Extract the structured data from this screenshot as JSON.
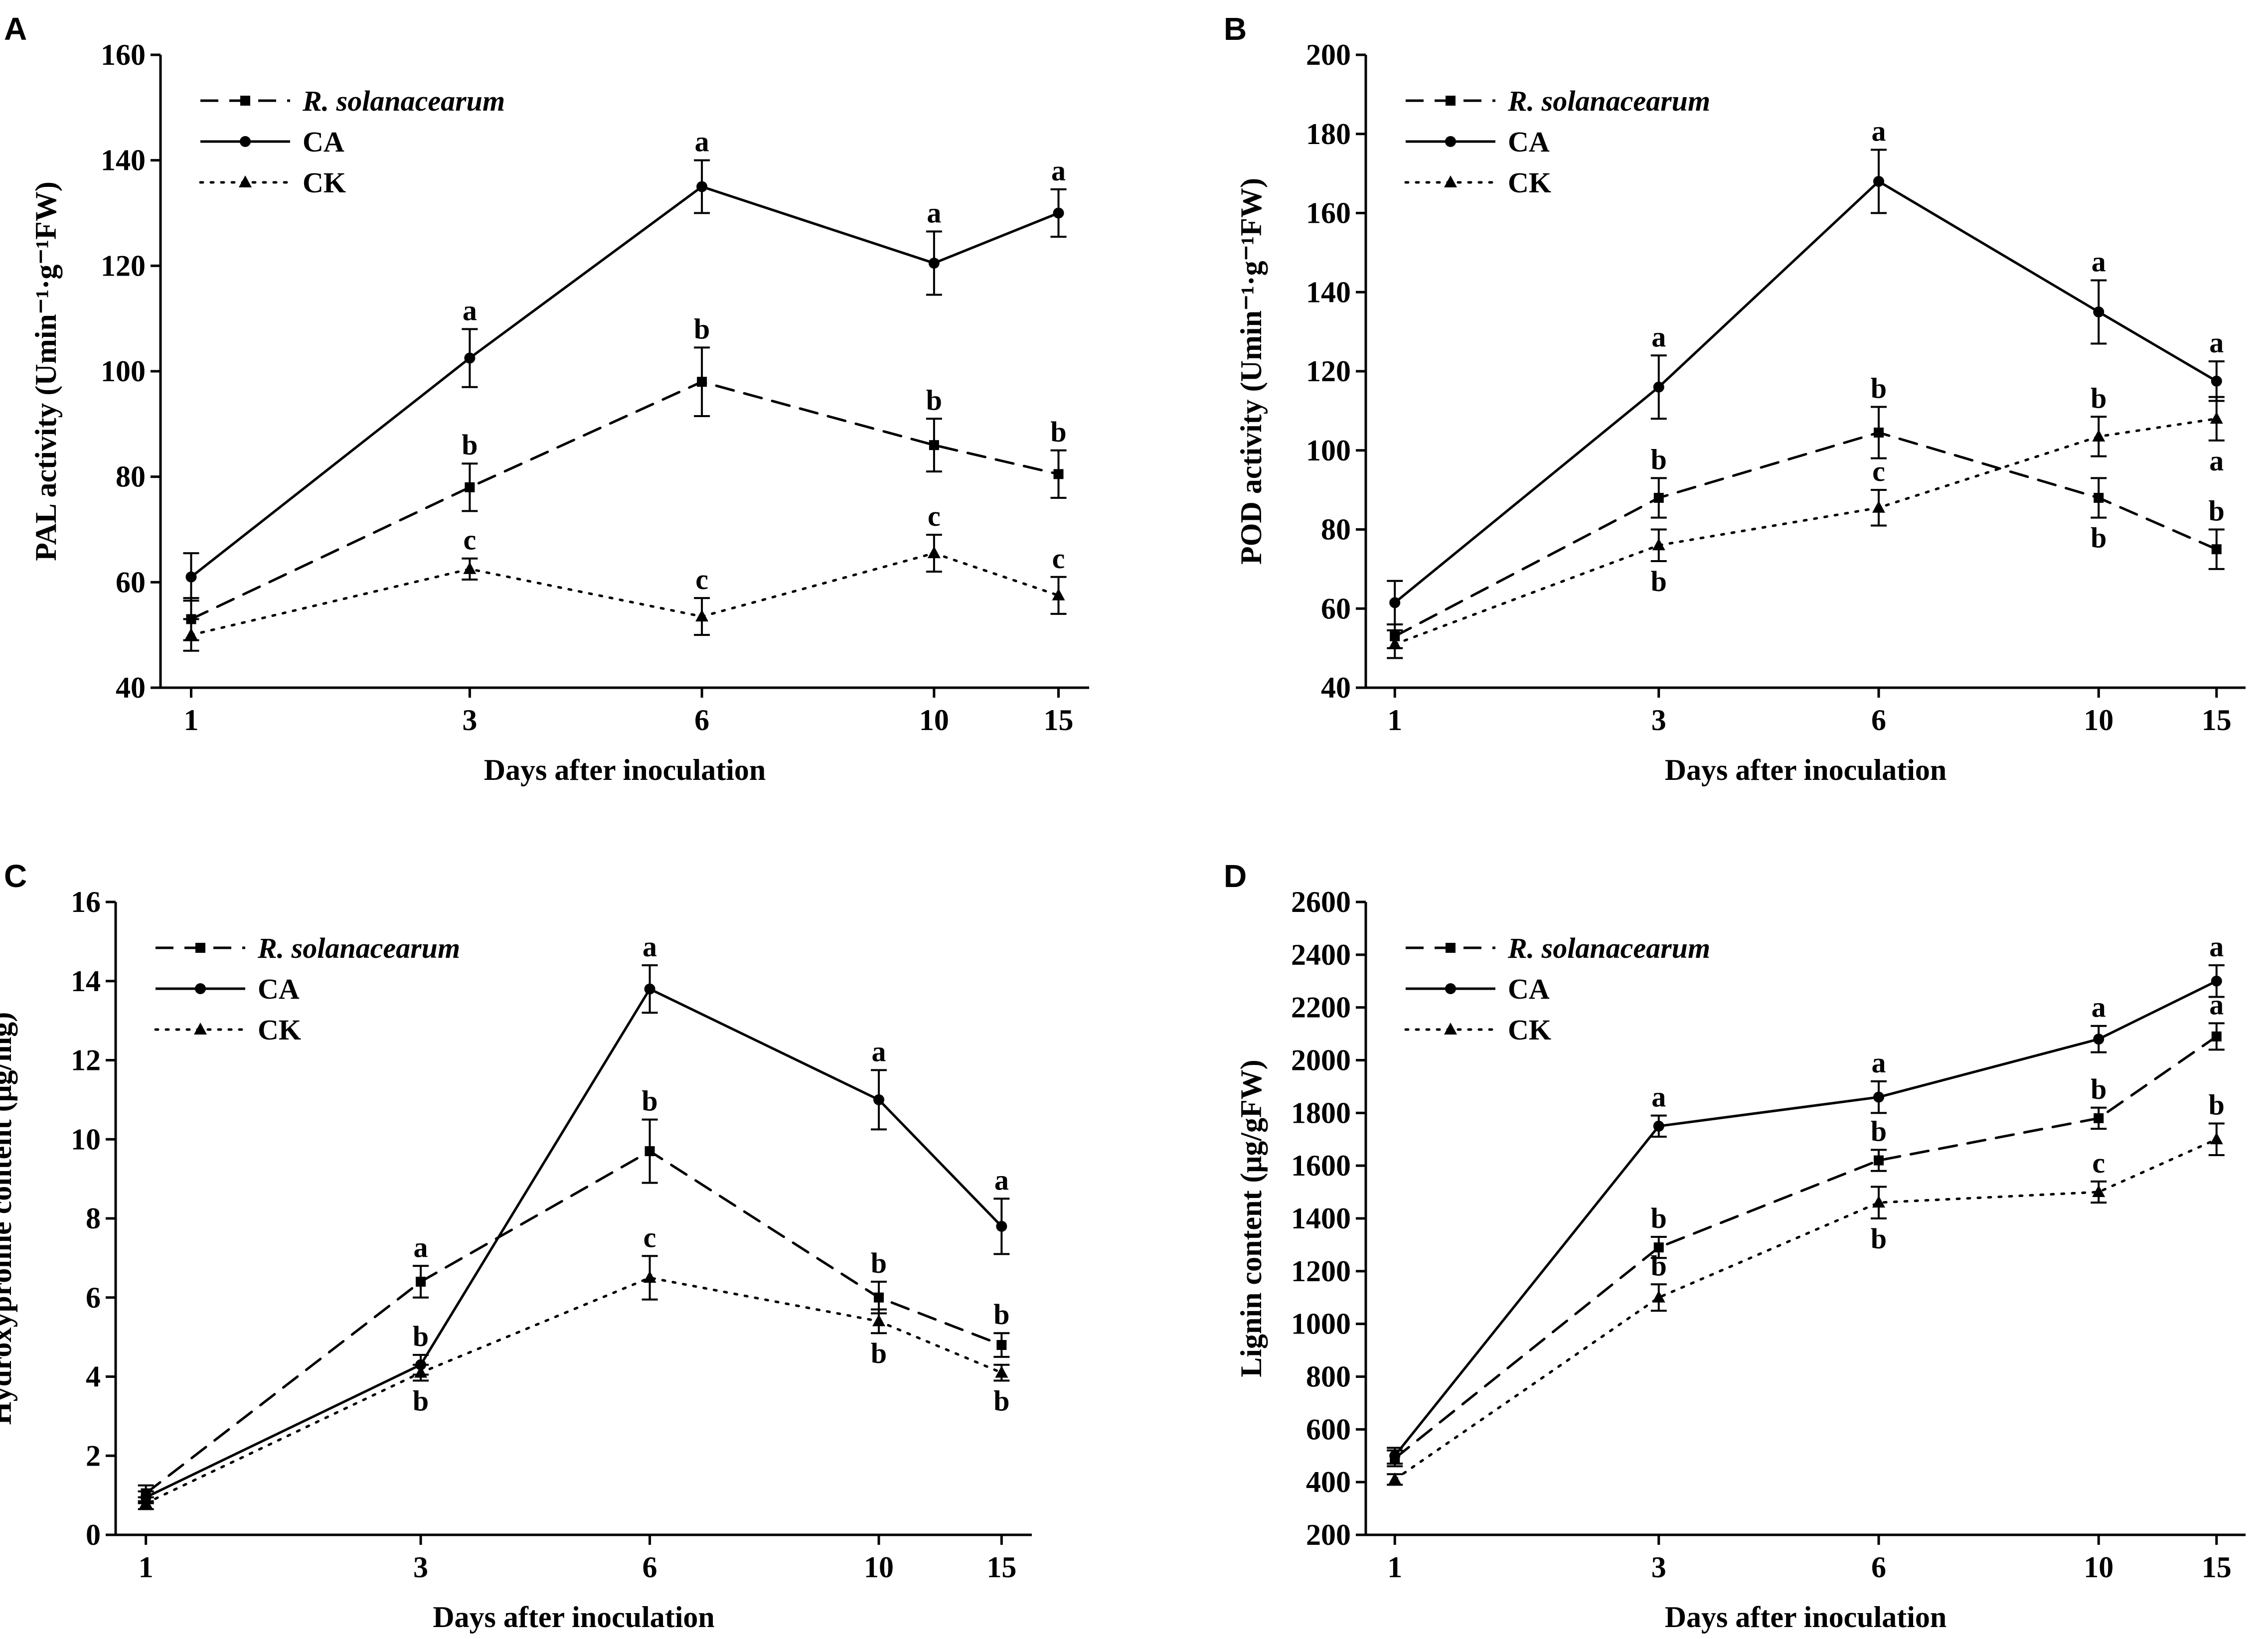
{
  "chart_data": [
    {
      "panel": "A",
      "type": "line",
      "xlabel": "Days after inoculation",
      "ylabel": "PAL activity (Umin⁻¹·g⁻¹FW)",
      "categories": [
        "1",
        "3",
        "6",
        "10",
        "15"
      ],
      "ylim": [
        40,
        160
      ],
      "yticks": [
        40,
        60,
        80,
        100,
        120,
        140,
        160
      ],
      "series": [
        {
          "name": "R. solanacearum",
          "style": "dashed",
          "marker": "square",
          "values": [
            53,
            78,
            98,
            86,
            80.5
          ],
          "errors": [
            4,
            4.5,
            6.5,
            5,
            4.5
          ],
          "labels": [
            "",
            "b",
            "b",
            "b",
            "b"
          ],
          "label_pos": [
            "",
            "above",
            "above",
            "above",
            "above"
          ]
        },
        {
          "name": "CA",
          "style": "solid",
          "marker": "circle",
          "values": [
            61,
            102.5,
            135,
            120.5,
            130
          ],
          "errors": [
            4.5,
            5.5,
            5,
            6,
            4.5
          ],
          "labels": [
            "",
            "a",
            "a",
            "a",
            "a"
          ],
          "label_pos": [
            "",
            "above",
            "above",
            "above",
            "above"
          ]
        },
        {
          "name": "CK",
          "style": "dotted",
          "marker": "triangle",
          "values": [
            50,
            62.5,
            53.5,
            65.5,
            57.5
          ],
          "errors": [
            3,
            2,
            3.5,
            3.5,
            3.5
          ],
          "labels": [
            "",
            "c",
            "c",
            "c",
            "c"
          ],
          "label_pos": [
            "",
            "above",
            "above",
            "above",
            "above"
          ]
        }
      ]
    },
    {
      "panel": "B",
      "type": "line",
      "xlabel": "Days after inoculation",
      "ylabel": "POD activity (Umin⁻¹·g⁻¹FW)",
      "categories": [
        "1",
        "3",
        "6",
        "10",
        "15"
      ],
      "ylim": [
        40,
        200
      ],
      "yticks": [
        40,
        60,
        80,
        100,
        120,
        140,
        160,
        180,
        200
      ],
      "series": [
        {
          "name": "R. solanacearum",
          "style": "dashed",
          "marker": "square",
          "values": [
            53,
            88,
            104.5,
            88,
            75
          ],
          "errors": [
            3,
            5,
            6.5,
            5,
            5
          ],
          "labels": [
            "",
            "b",
            "b",
            "b",
            "b"
          ],
          "label_pos": [
            "",
            "above",
            "above",
            "below",
            "above"
          ]
        },
        {
          "name": "CA",
          "style": "solid",
          "marker": "circle",
          "values": [
            61.5,
            116,
            168,
            135,
            117.5
          ],
          "errors": [
            5.5,
            8,
            8,
            8,
            5
          ],
          "labels": [
            "",
            "a",
            "a",
            "a",
            "a"
          ],
          "label_pos": [
            "",
            "above",
            "above",
            "above",
            "above"
          ]
        },
        {
          "name": "CK",
          "style": "dotted",
          "marker": "triangle",
          "values": [
            51,
            76,
            85.5,
            103.5,
            108
          ],
          "errors": [
            3.5,
            4,
            4.5,
            5,
            5.5
          ],
          "labels": [
            "",
            "b",
            "c",
            "b",
            "a"
          ],
          "label_pos": [
            "",
            "below",
            "above",
            "above",
            "below"
          ]
        }
      ]
    },
    {
      "panel": "C",
      "type": "line",
      "xlabel": "Days after inoculation",
      "ylabel": "Hydroxyproline content (μg/mg)",
      "categories": [
        "1",
        "3",
        "6",
        "10",
        "15"
      ],
      "ylim": [
        0,
        16
      ],
      "yticks": [
        0,
        2,
        4,
        6,
        8,
        10,
        12,
        14,
        16
      ],
      "series": [
        {
          "name": "R. solanacearum",
          "style": "dashed",
          "marker": "square",
          "values": [
            1.05,
            6.4,
            9.7,
            6.0,
            4.8
          ],
          "errors": [
            0.2,
            0.4,
            0.8,
            0.4,
            0.3
          ],
          "labels": [
            "",
            "a",
            "b",
            "b",
            "b"
          ],
          "label_pos": [
            "",
            "above",
            "above",
            "above",
            "above"
          ]
        },
        {
          "name": "CA",
          "style": "solid",
          "marker": "circle",
          "values": [
            0.95,
            4.3,
            13.8,
            11.0,
            7.8
          ],
          "errors": [
            0.15,
            0.25,
            0.6,
            0.75,
            0.7
          ],
          "labels": [
            "",
            "b",
            "a",
            "a",
            "a"
          ],
          "label_pos": [
            "",
            "above",
            "above",
            "above",
            "above"
          ]
        },
        {
          "name": "CK",
          "style": "dotted",
          "marker": "triangle",
          "values": [
            0.8,
            4.1,
            6.5,
            5.4,
            4.1
          ],
          "errors": [
            0.15,
            0.2,
            0.55,
            0.3,
            0.2
          ],
          "labels": [
            "",
            "b",
            "c",
            "b",
            "b"
          ],
          "label_pos": [
            "",
            "below",
            "above",
            "below",
            "below"
          ]
        }
      ]
    },
    {
      "panel": "D",
      "type": "line",
      "xlabel": "Days after inoculation",
      "ylabel": "Lignin content (μg/gFW)",
      "categories": [
        "1",
        "3",
        "6",
        "10",
        "15"
      ],
      "ylim": [
        200,
        2600
      ],
      "yticks": [
        200,
        400,
        600,
        800,
        1000,
        1200,
        1400,
        1600,
        1800,
        2000,
        2200,
        2400,
        2600
      ],
      "series": [
        {
          "name": "R. solanacearum",
          "style": "dashed",
          "marker": "square",
          "values": [
            490,
            1290,
            1620,
            1780,
            2090
          ],
          "errors": [
            30,
            40,
            40,
            40,
            50
          ],
          "labels": [
            "",
            "b",
            "b",
            "b",
            "a"
          ],
          "label_pos": [
            "",
            "above",
            "above",
            "above",
            "above"
          ]
        },
        {
          "name": "CA",
          "style": "solid",
          "marker": "circle",
          "values": [
            500,
            1750,
            1860,
            2080,
            2300
          ],
          "errors": [
            30,
            40,
            60,
            50,
            60
          ],
          "labels": [
            "",
            "a",
            "a",
            "a",
            "a"
          ],
          "label_pos": [
            "",
            "above",
            "above",
            "above",
            "above"
          ]
        },
        {
          "name": "CK",
          "style": "dotted",
          "marker": "triangle",
          "values": [
            410,
            1100,
            1460,
            1500,
            1700
          ],
          "errors": [
            20,
            50,
            60,
            40,
            60
          ],
          "labels": [
            "",
            "b",
            "b",
            "c",
            "b"
          ],
          "label_pos": [
            "",
            "above",
            "below",
            "above",
            "above"
          ]
        }
      ]
    }
  ]
}
